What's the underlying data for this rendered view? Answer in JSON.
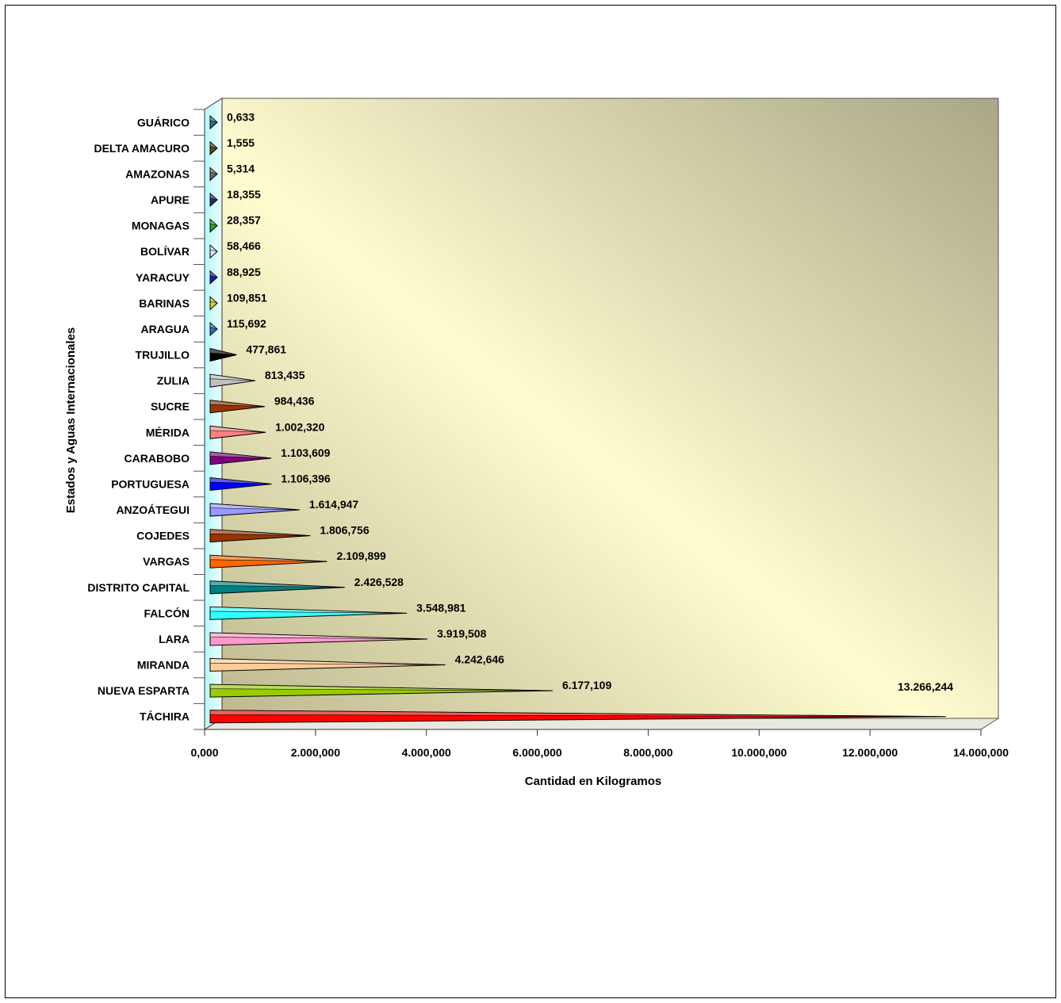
{
  "chart_data": {
    "type": "bar",
    "orientation": "horizontal",
    "style": "3d-cone",
    "xlabel": "Cantidad en Kilogramos",
    "ylabel": "Estados y Aguas Internacionales",
    "xlim": [
      0,
      14000000
    ],
    "xticks": [
      "0,000",
      "2.000,000",
      "4.000,000",
      "6.000,000",
      "8.000,000",
      "10.000,000",
      "12.000,000",
      "14.000,000"
    ],
    "xtick_values": [
      0,
      2000000,
      4000000,
      6000000,
      8000000,
      10000000,
      12000000,
      14000000
    ],
    "grid": false,
    "legend": "none",
    "background": "gradient cream-to-olive",
    "categories": [
      "GUÁRICO",
      "DELTA AMACURO",
      "AMAZONAS",
      "APURE",
      "MONAGAS",
      "BOLÍVAR",
      "YARACUY",
      "BARINAS",
      "ARAGUA",
      "TRUJILLO",
      "ZULIA",
      "SUCRE",
      "MÉRIDA",
      "CARABOBO",
      "PORTUGUESA",
      "ANZOÁTEGUI",
      "COJEDES",
      "VARGAS",
      "DISTRITO CAPITAL",
      "FALCÓN",
      "LARA",
      "MIRANDA",
      "NUEVA ESPARTA",
      "TÁCHIRA"
    ],
    "values": [
      0.633,
      1.555,
      5.314,
      18.355,
      28.357,
      58.466,
      88.925,
      109.851,
      115.692,
      477.861,
      813.435,
      984.436,
      1002.32,
      1103.609,
      1106.396,
      1614.947,
      1806.756,
      2109.899,
      2426.528,
      3548.981,
      3919.508,
      4242.646,
      6177.109,
      13266.244
    ],
    "value_labels": [
      "0,633",
      "1,555",
      "5,314",
      "18,355",
      "28,357",
      "58,466",
      "88,925",
      "109,851",
      "115,692",
      "477,861",
      "813,435",
      "984,436",
      "1.002,320",
      "1.103,609",
      "1.106,396",
      "1.614,947",
      "1.806,756",
      "2.109,899",
      "2.426,528",
      "3.548,981",
      "3.919,508",
      "4.242,646",
      "6.177,109",
      "13.266,244"
    ],
    "colors": [
      "#2e6f8e",
      "#5a4a1a",
      "#6b6b6b",
      "#2a2a7a",
      "#22aa22",
      "#dde6ff",
      "#1a1acc",
      "#e8d020",
      "#2a6fd0",
      "#000000",
      "#c0c0c0",
      "#993300",
      "#ff8080",
      "#800080",
      "#0000ff",
      "#9999ff",
      "#993300",
      "#ff6600",
      "#008080",
      "#33ffff",
      "#ff99cc",
      "#ffcc99",
      "#99cc00",
      "#ff0000"
    ]
  }
}
